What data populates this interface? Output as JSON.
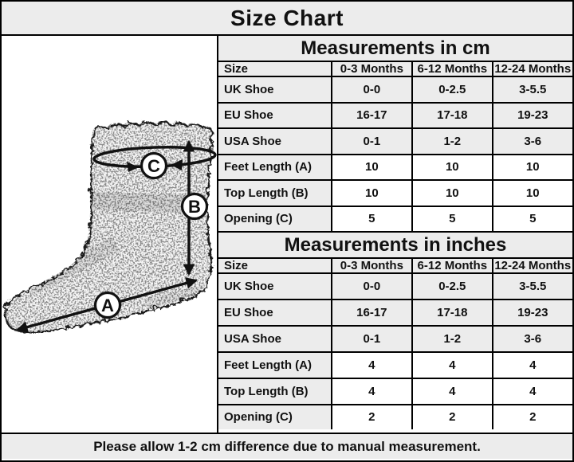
{
  "title": "Size Chart",
  "footer_note": "Please allow 1-2 cm difference due to manual measurement.",
  "colors": {
    "header_gray": "#ececec",
    "cell_white": "#ffffff",
    "border_black": "#000000",
    "text_black": "#111111"
  },
  "diagram": {
    "subject": "fuzzy baby sock with measurement arrows",
    "markers": {
      "feet_length": "A",
      "top_length": "B",
      "opening": "C"
    }
  },
  "tables": [
    {
      "title": "Measurements in cm",
      "columns": [
        "Size",
        "0-3 Months",
        "6-12 Months",
        "12-24 Months"
      ],
      "rows": [
        {
          "label": "UK Shoe",
          "values": [
            "0-0",
            "0-2.5",
            "3-5.5"
          ],
          "shaded": true
        },
        {
          "label": "EU Shoe",
          "values": [
            "16-17",
            "17-18",
            "19-23"
          ],
          "shaded": true
        },
        {
          "label": "USA Shoe",
          "values": [
            "0-1",
            "1-2",
            "3-6"
          ],
          "shaded": true
        },
        {
          "label": "Feet Length (A)",
          "values": [
            "10",
            "10",
            "10"
          ],
          "shaded": false
        },
        {
          "label": "Top Length (B)",
          "values": [
            "10",
            "10",
            "10"
          ],
          "shaded": false
        },
        {
          "label": "Opening (C)",
          "values": [
            "5",
            "5",
            "5"
          ],
          "shaded": false
        }
      ]
    },
    {
      "title": "Measurements in inches",
      "columns": [
        "Size",
        "0-3 Months",
        "6-12 Months",
        "12-24 Months"
      ],
      "rows": [
        {
          "label": "UK Shoe",
          "values": [
            "0-0",
            "0-2.5",
            "3-5.5"
          ],
          "shaded": true
        },
        {
          "label": "EU Shoe",
          "values": [
            "16-17",
            "17-18",
            "19-23"
          ],
          "shaded": true
        },
        {
          "label": "USA Shoe",
          "values": [
            "0-1",
            "1-2",
            "3-6"
          ],
          "shaded": true
        },
        {
          "label": "Feet Length (A)",
          "values": [
            "4",
            "4",
            "4"
          ],
          "shaded": false
        },
        {
          "label": "Top Length (B)",
          "values": [
            "4",
            "4",
            "4"
          ],
          "shaded": false
        },
        {
          "label": "Opening (C)",
          "values": [
            "2",
            "2",
            "2"
          ],
          "shaded": false
        }
      ]
    }
  ]
}
